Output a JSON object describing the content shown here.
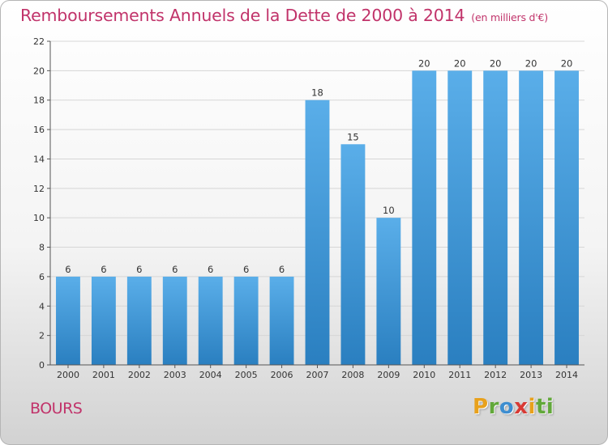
{
  "title": {
    "main": "Remboursements Annuels de la Dette de 2000 à 2014",
    "unit": "(en milliers d'€)"
  },
  "place_name": "BOURS",
  "logo": {
    "letters": [
      "P",
      "r",
      "o",
      "x",
      "i",
      "ti"
    ]
  },
  "colors": {
    "title": "#c1336a",
    "bar_top": "#5aaee9",
    "bar_bottom": "#2a7fc0",
    "grid": "#d6d6d6",
    "axis": "#555555"
  },
  "chart_data": {
    "type": "bar",
    "categories": [
      "2000",
      "2001",
      "2002",
      "2003",
      "2004",
      "2005",
      "2006",
      "2007",
      "2008",
      "2009",
      "2010",
      "2011",
      "2012",
      "2013",
      "2014"
    ],
    "values": [
      6,
      6,
      6,
      6,
      6,
      6,
      6,
      18,
      15,
      10,
      20,
      20,
      20,
      20,
      20
    ],
    "yticks": [
      0,
      2,
      4,
      6,
      8,
      10,
      12,
      14,
      16,
      18,
      20,
      22
    ],
    "ylim": [
      0,
      22
    ],
    "grid": true,
    "legend": "none"
  }
}
